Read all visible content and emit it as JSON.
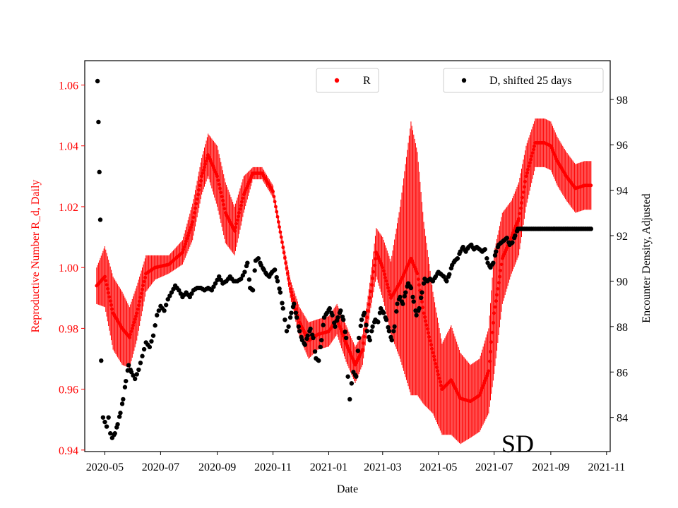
{
  "chart_data": {
    "type": "scatter",
    "xlabel": "Date",
    "ylabel_left": "Reproductive Number R_d, Daily",
    "ylabel_right": "Encounter Density, Adjusted",
    "watermark": "SD",
    "xlim": [
      "2020-04-09",
      "2021-11-05"
    ],
    "ylim_left": [
      0.9395,
      1.068
    ],
    "ylim_right": [
      82.5,
      99.7
    ],
    "x_ticks": [
      "2020-05-01",
      "2020-07-01",
      "2020-09-01",
      "2020-11-01",
      "2021-01-01",
      "2021-03-01",
      "2021-05-01",
      "2021-07-01",
      "2021-09-01",
      "2021-11-01"
    ],
    "x_tick_labels": [
      "2020-05",
      "2020-07",
      "2020-09",
      "2020-11",
      "2021-01",
      "2021-03",
      "2021-05",
      "2021-07",
      "2021-09",
      "2021-11"
    ],
    "y_left_ticks": [
      "0.94",
      "0.96",
      "0.98",
      "1.00",
      "1.02",
      "1.04",
      "1.06"
    ],
    "y_right_ticks": [
      "84",
      "86",
      "88",
      "90",
      "92",
      "94",
      "96",
      "98"
    ],
    "legend": {
      "r_label": "R",
      "d_label": "D, shifted 25 days",
      "r_placement": "top-center",
      "d_placement": "top-right"
    },
    "colors": {
      "r": "#ff0000",
      "d": "#000000",
      "left_axis": "#ff0000"
    },
    "series": [
      {
        "name": "R",
        "axis": "left",
        "style": "points with error bars",
        "points": [
          [
            "2020-04-22",
            0.994,
            0.006
          ],
          [
            "2020-05-01",
            0.997,
            0.01
          ],
          [
            "2020-05-10",
            0.985,
            0.012
          ],
          [
            "2020-05-20",
            0.98,
            0.012
          ],
          [
            "2020-05-28",
            0.977,
            0.01
          ],
          [
            "2020-06-05",
            0.985,
            0.009
          ],
          [
            "2020-06-15",
            0.998,
            0.006
          ],
          [
            "2020-06-25",
            1.0,
            0.004
          ],
          [
            "2020-07-10",
            1.001,
            0.003
          ],
          [
            "2020-07-25",
            1.005,
            0.004
          ],
          [
            "2020-08-05",
            1.015,
            0.006
          ],
          [
            "2020-08-15",
            1.03,
            0.006
          ],
          [
            "2020-08-22",
            1.037,
            0.007
          ],
          [
            "2020-09-01",
            1.03,
            0.01
          ],
          [
            "2020-09-10",
            1.018,
            0.01
          ],
          [
            "2020-09-20",
            1.012,
            0.008
          ],
          [
            "2020-09-30",
            1.024,
            0.006
          ],
          [
            "2020-10-10",
            1.031,
            0.002
          ],
          [
            "2020-10-20",
            1.031,
            0.002
          ],
          [
            "2020-11-01",
            1.025,
            0.002
          ],
          [
            "2020-11-10",
            1.01,
            0.002
          ],
          [
            "2020-11-20",
            0.993,
            0.003
          ],
          [
            "2020-11-30",
            0.982,
            0.005
          ],
          [
            "2020-12-10",
            0.976,
            0.006
          ],
          [
            "2020-12-20",
            0.978,
            0.005
          ],
          [
            "2021-01-01",
            0.979,
            0.005
          ],
          [
            "2021-01-10",
            0.983,
            0.005
          ],
          [
            "2021-01-20",
            0.975,
            0.006
          ],
          [
            "2021-01-30",
            0.968,
            0.006
          ],
          [
            "2021-02-07",
            0.973,
            0.005
          ],
          [
            "2021-02-15",
            0.99,
            0.005
          ],
          [
            "2021-02-22",
            1.005,
            0.008
          ],
          [
            "2021-03-01",
            1.0,
            0.01
          ],
          [
            "2021-03-10",
            0.99,
            0.012
          ],
          [
            "2021-03-20",
            0.995,
            0.025
          ],
          [
            "2021-04-01",
            1.003,
            0.045
          ],
          [
            "2021-04-08",
            0.998,
            0.04
          ],
          [
            "2021-04-15",
            0.985,
            0.03
          ],
          [
            "2021-04-25",
            0.972,
            0.02
          ],
          [
            "2021-05-05",
            0.96,
            0.015
          ],
          [
            "2021-05-15",
            0.963,
            0.018
          ],
          [
            "2021-05-25",
            0.957,
            0.015
          ],
          [
            "2021-06-05",
            0.956,
            0.012
          ],
          [
            "2021-06-15",
            0.958,
            0.012
          ],
          [
            "2021-06-25",
            0.966,
            0.014
          ],
          [
            "2021-07-01",
            0.985,
            0.02
          ],
          [
            "2021-07-10",
            1.003,
            0.015
          ],
          [
            "2021-07-20",
            1.01,
            0.012
          ],
          [
            "2021-07-28",
            1.016,
            0.012
          ],
          [
            "2021-08-05",
            1.03,
            0.01
          ],
          [
            "2021-08-15",
            1.041,
            0.008
          ],
          [
            "2021-08-25",
            1.041,
            0.008
          ],
          [
            "2021-09-01",
            1.04,
            0.008
          ],
          [
            "2021-09-08",
            1.035,
            0.008
          ],
          [
            "2021-09-18",
            1.03,
            0.008
          ],
          [
            "2021-09-28",
            1.026,
            0.008
          ],
          [
            "2021-10-08",
            1.027,
            0.008
          ],
          [
            "2021-10-15",
            1.027,
            0.008
          ]
        ]
      },
      {
        "name": "D, shifted 25 days",
        "axis": "right",
        "style": "points",
        "points": [
          [
            "2020-04-23",
            98.8
          ],
          [
            "2020-04-24",
            97.0
          ],
          [
            "2020-04-25",
            94.8
          ],
          [
            "2020-04-26",
            92.7
          ],
          [
            "2020-04-27",
            86.5
          ],
          [
            "2020-04-29",
            84.0
          ],
          [
            "2020-05-01",
            83.8
          ],
          [
            "2020-05-03",
            83.6
          ],
          [
            "2020-05-05",
            84.0
          ],
          [
            "2020-05-07",
            83.3
          ],
          [
            "2020-05-09",
            83.1
          ],
          [
            "2020-05-12",
            83.3
          ],
          [
            "2020-05-15",
            83.7
          ],
          [
            "2020-05-18",
            84.2
          ],
          [
            "2020-05-21",
            84.8
          ],
          [
            "2020-05-24",
            85.6
          ],
          [
            "2020-05-27",
            86.3
          ],
          [
            "2020-05-30",
            86.0
          ],
          [
            "2020-06-03",
            85.7
          ],
          [
            "2020-06-07",
            86.1
          ],
          [
            "2020-06-11",
            86.7
          ],
          [
            "2020-06-15",
            87.3
          ],
          [
            "2020-06-19",
            87.1
          ],
          [
            "2020-06-23",
            87.6
          ],
          [
            "2020-06-27",
            88.5
          ],
          [
            "2020-07-01",
            88.9
          ],
          [
            "2020-07-05",
            88.7
          ],
          [
            "2020-07-09",
            89.2
          ],
          [
            "2020-07-13",
            89.5
          ],
          [
            "2020-07-17",
            89.8
          ],
          [
            "2020-07-21",
            89.6
          ],
          [
            "2020-07-25",
            89.3
          ],
          [
            "2020-07-29",
            89.5
          ],
          [
            "2020-08-02",
            89.3
          ],
          [
            "2020-08-06",
            89.6
          ],
          [
            "2020-08-10",
            89.7
          ],
          [
            "2020-08-14",
            89.7
          ],
          [
            "2020-08-18",
            89.6
          ],
          [
            "2020-08-22",
            89.7
          ],
          [
            "2020-08-26",
            89.6
          ],
          [
            "2020-08-30",
            89.9
          ],
          [
            "2020-09-03",
            90.2
          ],
          [
            "2020-09-07",
            89.9
          ],
          [
            "2020-09-11",
            90.0
          ],
          [
            "2020-09-15",
            90.2
          ],
          [
            "2020-09-19",
            90.0
          ],
          [
            "2020-09-23",
            90.0
          ],
          [
            "2020-09-27",
            90.1
          ],
          [
            "2020-10-01",
            90.4
          ],
          [
            "2020-10-04",
            90.8
          ],
          [
            "2020-10-07",
            89.7
          ],
          [
            "2020-10-10",
            89.6
          ],
          [
            "2020-10-13",
            90.9
          ],
          [
            "2020-10-16",
            91.0
          ],
          [
            "2020-10-19",
            90.7
          ],
          [
            "2020-10-22",
            90.5
          ],
          [
            "2020-10-25",
            90.3
          ],
          [
            "2020-10-28",
            90.2
          ],
          [
            "2020-10-31",
            90.4
          ],
          [
            "2020-11-03",
            90.5
          ],
          [
            "2020-11-06",
            90.0
          ],
          [
            "2020-11-09",
            89.5
          ],
          [
            "2020-11-12",
            88.8
          ],
          [
            "2020-11-14",
            88.3
          ],
          [
            "2020-11-16",
            87.8
          ],
          [
            "2020-11-18",
            88.0
          ],
          [
            "2020-11-21",
            88.6
          ],
          [
            "2020-11-24",
            89.0
          ],
          [
            "2020-11-27",
            88.4
          ],
          [
            "2020-11-30",
            87.8
          ],
          [
            "2020-12-03",
            87.4
          ],
          [
            "2020-12-06",
            87.2
          ],
          [
            "2020-12-09",
            87.6
          ],
          [
            "2020-12-12",
            87.9
          ],
          [
            "2020-12-15",
            87.5
          ],
          [
            "2020-12-18",
            86.6
          ],
          [
            "2020-12-21",
            86.5
          ],
          [
            "2020-12-24",
            87.4
          ],
          [
            "2020-12-27",
            88.4
          ],
          [
            "2020-12-30",
            88.6
          ],
          [
            "2021-01-02",
            88.8
          ],
          [
            "2021-01-05",
            88.5
          ],
          [
            "2021-01-08",
            88.0
          ],
          [
            "2021-01-11",
            88.4
          ],
          [
            "2021-01-14",
            88.7
          ],
          [
            "2021-01-17",
            88.3
          ],
          [
            "2021-01-20",
            87.5
          ],
          [
            "2021-01-22",
            85.8
          ],
          [
            "2021-01-24",
            84.8
          ],
          [
            "2021-01-26",
            85.5
          ],
          [
            "2021-01-28",
            86.0
          ],
          [
            "2021-01-31",
            85.8
          ],
          [
            "2021-02-03",
            87.5
          ],
          [
            "2021-02-06",
            88.3
          ],
          [
            "2021-02-09",
            88.6
          ],
          [
            "2021-02-12",
            87.8
          ],
          [
            "2021-02-15",
            87.4
          ],
          [
            "2021-02-18",
            88.0
          ],
          [
            "2021-02-21",
            88.3
          ],
          [
            "2021-02-24",
            88.2
          ],
          [
            "2021-02-27",
            88.8
          ],
          [
            "2021-03-02",
            88.6
          ],
          [
            "2021-03-05",
            88.3
          ],
          [
            "2021-03-08",
            87.8
          ],
          [
            "2021-03-11",
            87.4
          ],
          [
            "2021-03-14",
            88.0
          ],
          [
            "2021-03-17",
            89.0
          ],
          [
            "2021-03-20",
            89.3
          ],
          [
            "2021-03-23",
            89.0
          ],
          [
            "2021-03-26",
            89.5
          ],
          [
            "2021-03-29",
            89.9
          ],
          [
            "2021-04-01",
            89.7
          ],
          [
            "2021-04-04",
            89.1
          ],
          [
            "2021-04-07",
            88.5
          ],
          [
            "2021-04-10",
            88.8
          ],
          [
            "2021-04-13",
            89.5
          ],
          [
            "2021-04-16",
            90.1
          ],
          [
            "2021-04-19",
            90.0
          ],
          [
            "2021-04-22",
            90.1
          ],
          [
            "2021-04-25",
            90.0
          ],
          [
            "2021-04-28",
            90.2
          ],
          [
            "2021-05-01",
            90.4
          ],
          [
            "2021-05-04",
            90.3
          ],
          [
            "2021-05-07",
            90.2
          ],
          [
            "2021-05-10",
            90.0
          ],
          [
            "2021-05-13",
            90.3
          ],
          [
            "2021-05-16",
            90.7
          ],
          [
            "2021-05-19",
            90.9
          ],
          [
            "2021-05-22",
            91.0
          ],
          [
            "2021-05-25",
            91.3
          ],
          [
            "2021-05-28",
            91.5
          ],
          [
            "2021-05-31",
            91.3
          ],
          [
            "2021-06-03",
            91.5
          ],
          [
            "2021-06-06",
            91.6
          ],
          [
            "2021-06-09",
            91.4
          ],
          [
            "2021-06-12",
            91.5
          ],
          [
            "2021-06-15",
            91.4
          ],
          [
            "2021-06-18",
            91.3
          ],
          [
            "2021-06-21",
            91.4
          ],
          [
            "2021-06-24",
            90.8
          ],
          [
            "2021-06-27",
            90.6
          ],
          [
            "2021-06-30",
            90.8
          ],
          [
            "2021-07-03",
            91.3
          ],
          [
            "2021-07-06",
            91.6
          ],
          [
            "2021-07-09",
            91.7
          ],
          [
            "2021-07-12",
            91.8
          ],
          [
            "2021-07-15",
            91.9
          ],
          [
            "2021-07-18",
            91.6
          ],
          [
            "2021-07-21",
            91.7
          ],
          [
            "2021-07-24",
            92.0
          ],
          [
            "2021-07-27",
            92.3
          ],
          [
            "2021-07-30",
            92.3
          ],
          [
            "2021-08-05",
            92.3
          ],
          [
            "2021-08-15",
            92.3
          ],
          [
            "2021-08-25",
            92.3
          ],
          [
            "2021-09-05",
            92.3
          ],
          [
            "2021-09-15",
            92.3
          ],
          [
            "2021-09-25",
            92.3
          ],
          [
            "2021-10-05",
            92.3
          ],
          [
            "2021-10-15",
            92.3
          ]
        ]
      }
    ]
  }
}
